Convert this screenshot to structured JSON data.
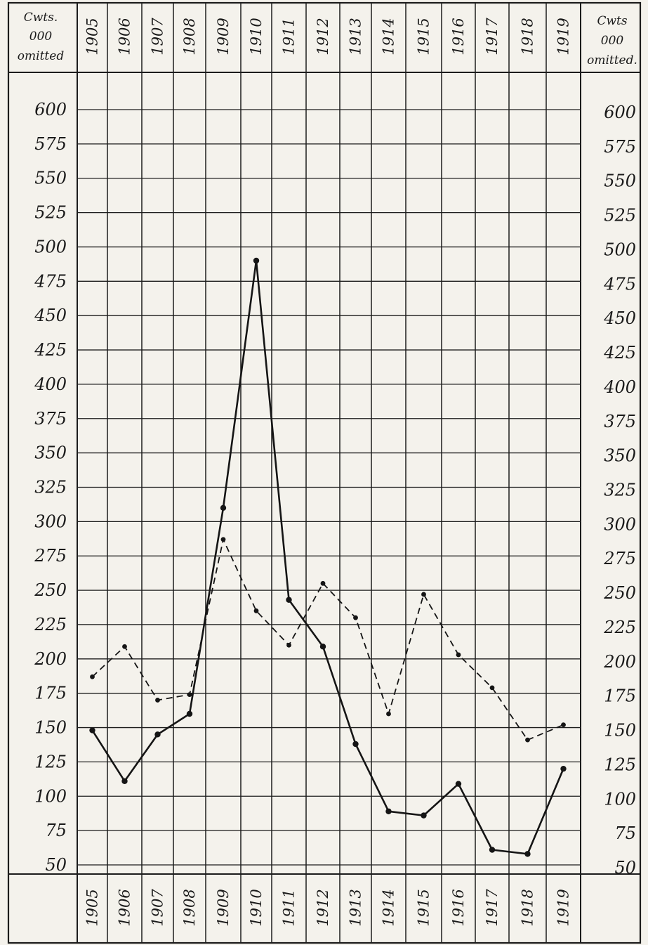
{
  "chart_data": {
    "type": "line",
    "title": "",
    "xlabel": "",
    "ylabel": "",
    "unit_label_left": [
      "Cwts.",
      "000",
      "omitted"
    ],
    "unit_label_right": [
      "Cwts",
      "000",
      "omitted."
    ],
    "categories": [
      "1905",
      "1906",
      "1907",
      "1908",
      "1909",
      "1910",
      "1911",
      "1912",
      "1913",
      "1914",
      "1915",
      "1916",
      "1917",
      "1918",
      "1919"
    ],
    "y_ticks": [
      600,
      575,
      550,
      525,
      500,
      475,
      450,
      425,
      400,
      375,
      350,
      325,
      300,
      275,
      250,
      225,
      200,
      175,
      150,
      125,
      100,
      75,
      50
    ],
    "ylim": [
      50,
      600
    ],
    "grid": true,
    "legend": "none",
    "series": [
      {
        "style": "solid",
        "values": [
          148,
          111,
          145,
          160,
          310,
          490,
          243,
          209,
          138,
          89,
          86,
          109,
          61,
          58,
          120
        ]
      },
      {
        "style": "dashed",
        "values": [
          187,
          209,
          170,
          174,
          287,
          235,
          210,
          255,
          230,
          160,
          247,
          203,
          179,
          141,
          152
        ]
      }
    ]
  }
}
